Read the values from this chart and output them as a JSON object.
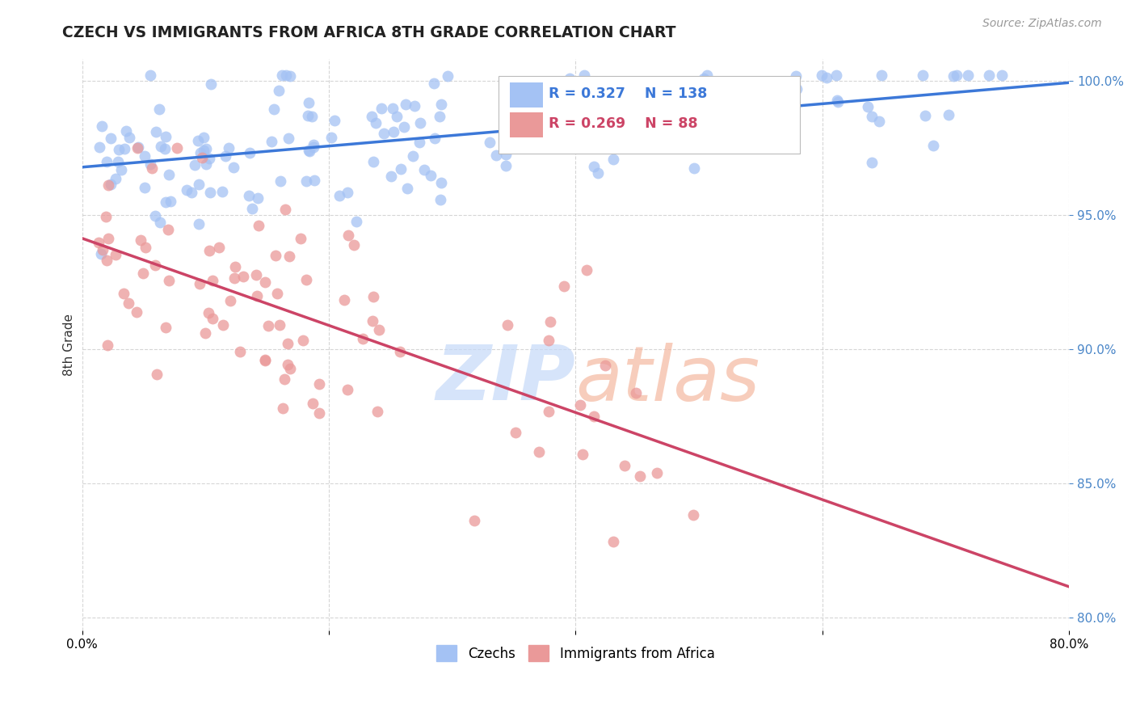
{
  "title": "CZECH VS IMMIGRANTS FROM AFRICA 8TH GRADE CORRELATION CHART",
  "source_text": "Source: ZipAtlas.com",
  "ylabel": "8th Grade",
  "x_min": 0.0,
  "x_max": 0.8,
  "y_min": 0.795,
  "y_max": 1.008,
  "x_ticks": [
    0.0,
    0.2,
    0.4,
    0.6,
    0.8
  ],
  "x_tick_labels": [
    "0.0%",
    "",
    "",
    "",
    "80.0%"
  ],
  "y_ticks": [
    0.8,
    0.85,
    0.9,
    0.95,
    1.0
  ],
  "blue_R": 0.327,
  "blue_N": 138,
  "pink_R": 0.269,
  "pink_N": 88,
  "blue_color": "#a4c2f4",
  "pink_color": "#ea9999",
  "blue_line_color": "#3c78d8",
  "pink_line_color": "#cc4466",
  "legend_czechs": "Czechs",
  "legend_africa": "Immigrants from Africa",
  "axis_color": "#4a86c8",
  "grid_color": "#cccccc",
  "watermark_zip_color": "#c5d9f8",
  "watermark_atlas_color": "#f4b8a0"
}
